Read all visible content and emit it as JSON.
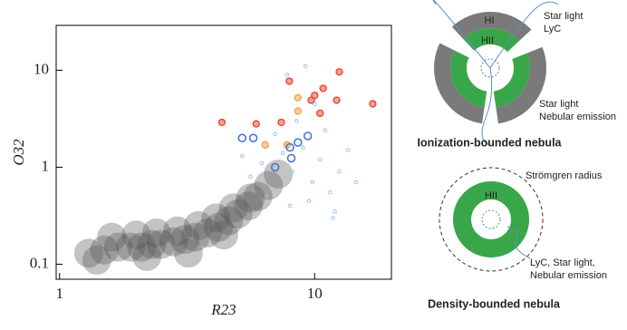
{
  "chart_data": {
    "type": "scatter",
    "x_label": "R23",
    "y_label": "O32",
    "xscale": "log",
    "yscale": "log",
    "xlim": [
      0.97,
      20
    ],
    "ylim": [
      0.07,
      29
    ],
    "xticks": [
      1,
      10
    ],
    "yticks": [
      0.1,
      1,
      10
    ],
    "series": [
      {
        "color": "#555555",
        "marker": "cloud",
        "x": [
          1.3,
          1.5,
          1.7,
          1.9,
          2.1,
          2.3,
          2.5,
          2.8,
          3.1,
          3.4,
          3.8,
          4.2,
          4.6,
          5.0,
          5.5,
          6.0,
          6.6,
          1.6,
          2.0,
          2.4,
          2.9,
          3.5,
          4.1,
          4.8,
          5.6,
          1.4,
          2.2,
          3.2,
          7.2,
          4.4
        ],
        "y": [
          0.13,
          0.14,
          0.15,
          0.15,
          0.15,
          0.16,
          0.16,
          0.17,
          0.18,
          0.19,
          0.21,
          0.24,
          0.28,
          0.33,
          0.4,
          0.5,
          0.65,
          0.19,
          0.2,
          0.21,
          0.22,
          0.25,
          0.3,
          0.38,
          0.48,
          0.11,
          0.12,
          0.13,
          0.85,
          0.2
        ]
      },
      {
        "color": "#9cc3ee",
        "marker": "small",
        "x": [
          5.6,
          6.2,
          6.8,
          7.5,
          8.2,
          9.0,
          9.8,
          10.5,
          11.5,
          12.5,
          13.5,
          7.0,
          8.5,
          9.5,
          11.0,
          12.0,
          6.5,
          10.0,
          8.0,
          14.5,
          5.2,
          9.2,
          11.8,
          7.8
        ],
        "y": [
          0.8,
          1.1,
          0.6,
          1.4,
          0.9,
          1.6,
          0.7,
          1.2,
          0.55,
          0.9,
          1.5,
          2.2,
          3.0,
          0.45,
          2.4,
          0.35,
          0.5,
          4.5,
          0.4,
          0.7,
          1.3,
          11.0,
          0.3,
          9.0
        ]
      },
      {
        "color": "#e8412c",
        "marker": "circle",
        "x": [
          4.33,
          5.9,
          7.4,
          7.96,
          10.0,
          10.8,
          12.5,
          16.9,
          9.7,
          12.2,
          10.5
        ],
        "y": [
          2.9,
          2.8,
          2.9,
          7.7,
          5.5,
          6.5,
          9.6,
          4.5,
          4.9,
          4.9,
          3.6
        ]
      },
      {
        "color": "#f5a040",
        "marker": "circle",
        "x": [
          8.6,
          8.6,
          6.4,
          7.8
        ],
        "y": [
          5.2,
          3.8,
          1.7,
          1.7
        ]
      },
      {
        "color": "#3d6fd6",
        "marker": "open",
        "x": [
          5.2,
          7.0,
          8.0,
          8.6,
          9.4,
          5.75,
          8.1
        ],
        "y": [
          2.0,
          1.0,
          1.6,
          1.8,
          2.1,
          2.0,
          1.24
        ]
      }
    ]
  },
  "diagrams": {
    "top": {
      "outer": "HI",
      "inner": "HII",
      "label_in_1": "Star light",
      "label_in_2": "LyC",
      "label_out_1": "Star light",
      "label_out_2": "Nebular emission",
      "caption": "Ionization-bounded nebula"
    },
    "bottom": {
      "radius_label": "Strömgren radius",
      "inner": "HII",
      "label_1": "LyC, Star light,",
      "label_2": "Nebular emission",
      "caption": "Density-bounded nebula"
    }
  }
}
